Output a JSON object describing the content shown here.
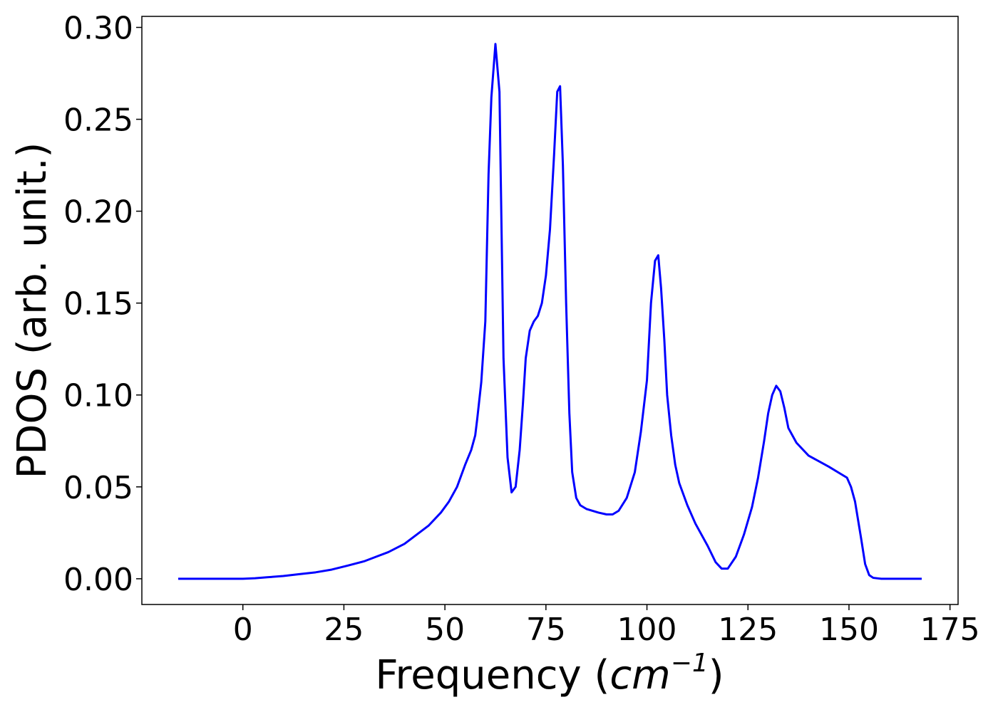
{
  "chart_data": {
    "type": "line",
    "title": "",
    "xlabel": "Frequency",
    "xlabel_unit": "cm",
    "xlabel_unit_exp": "−1",
    "ylabel": "PDOS (arb. unit.)",
    "xlim": [
      -25,
      177
    ],
    "ylim": [
      -0.014,
      0.306
    ],
    "xticks": [
      0,
      25,
      50,
      75,
      100,
      125,
      150,
      175
    ],
    "xtick_labels": [
      "0",
      "25",
      "50",
      "75",
      "100",
      "125",
      "150",
      "175"
    ],
    "yticks": [
      0.0,
      0.05,
      0.1,
      0.15,
      0.2,
      0.25,
      0.3
    ],
    "ytick_labels": [
      "0.00",
      "0.05",
      "0.10",
      "0.15",
      "0.20",
      "0.25",
      "0.30"
    ],
    "grid": false,
    "line_color": "#0000ff",
    "series": [
      {
        "x": [
          -16,
          -10,
          -5,
          0,
          3,
          6,
          10,
          14,
          18,
          22,
          26,
          30,
          33,
          36,
          40,
          43,
          46,
          49,
          51,
          53,
          55,
          56.5,
          57.5,
          58,
          59,
          60,
          60.8,
          61.5,
          62.5,
          63.5,
          64.5,
          65.5,
          66.5,
          67.5,
          68.5,
          69.3,
          70,
          71,
          72,
          73,
          74,
          75,
          76,
          77,
          77.8,
          78.5,
          79.2,
          80,
          80.8,
          81.5,
          82.5,
          83.5,
          85,
          88,
          90,
          91.5,
          93,
          95,
          97,
          98.5,
          100,
          101,
          102,
          102.8,
          103.5,
          104.3,
          105,
          106,
          107,
          108,
          110,
          112,
          115,
          117,
          118.5,
          120,
          122,
          124,
          126,
          127.5,
          129,
          130,
          131,
          132,
          133,
          134,
          135,
          137,
          140,
          145,
          148,
          149.5,
          150.5,
          151.5,
          153,
          154,
          155,
          156,
          158,
          162,
          168
        ],
        "y": [
          0.0,
          0.0,
          0.0,
          0.0,
          0.0003,
          0.0008,
          0.0015,
          0.0025,
          0.0035,
          0.005,
          0.0072,
          0.0095,
          0.012,
          0.0145,
          0.019,
          0.024,
          0.029,
          0.036,
          0.042,
          0.05,
          0.062,
          0.07,
          0.078,
          0.087,
          0.107,
          0.14,
          0.22,
          0.262,
          0.291,
          0.265,
          0.12,
          0.066,
          0.047,
          0.05,
          0.07,
          0.095,
          0.12,
          0.135,
          0.14,
          0.143,
          0.15,
          0.165,
          0.19,
          0.23,
          0.265,
          0.268,
          0.225,
          0.15,
          0.09,
          0.058,
          0.044,
          0.04,
          0.038,
          0.036,
          0.035,
          0.035,
          0.037,
          0.044,
          0.058,
          0.08,
          0.108,
          0.15,
          0.173,
          0.176,
          0.158,
          0.13,
          0.1,
          0.078,
          0.062,
          0.052,
          0.04,
          0.03,
          0.018,
          0.009,
          0.0055,
          0.0055,
          0.012,
          0.024,
          0.039,
          0.055,
          0.075,
          0.09,
          0.1,
          0.105,
          0.102,
          0.093,
          0.082,
          0.074,
          0.067,
          0.061,
          0.057,
          0.055,
          0.05,
          0.042,
          0.022,
          0.008,
          0.002,
          0.0005,
          0.0,
          0.0,
          0.0
        ]
      }
    ]
  }
}
